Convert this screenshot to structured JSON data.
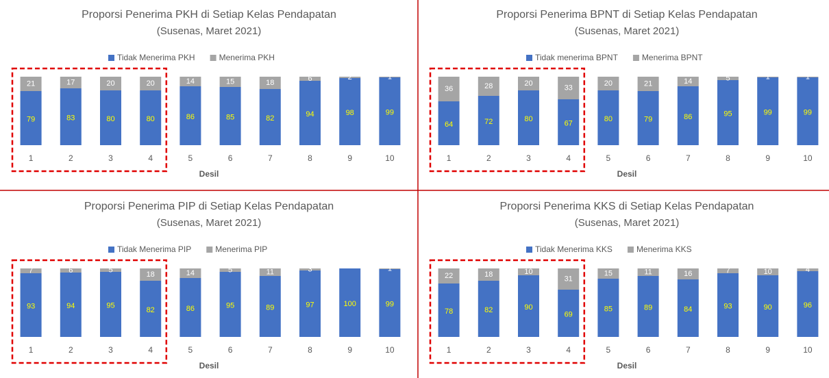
{
  "chart_data": [
    {
      "type": "stacked_bar",
      "title": "Proporsi Penerima PKH di Setiap Kelas Pendapatan",
      "subtitle": "(Susenas, Maret 2021)",
      "x_label": "Desil",
      "categories": [
        "1",
        "2",
        "3",
        "4",
        "5",
        "6",
        "7",
        "8",
        "9",
        "10"
      ],
      "series": [
        {
          "name": "Tidak Menerima PKH",
          "color": "#4472c4",
          "values": [
            79,
            83,
            80,
            80,
            86,
            85,
            82,
            94,
            98,
            99
          ]
        },
        {
          "name": "Menerima PKH",
          "color": "#a5a5a5",
          "values": [
            21,
            17,
            20,
            20,
            14,
            15,
            18,
            6,
            2,
            1
          ]
        }
      ]
    },
    {
      "type": "stacked_bar",
      "title": "Proporsi Penerima BPNT di Setiap Kelas Pendapatan",
      "subtitle": "(Susenas, Maret 2021)",
      "x_label": "Desil",
      "categories": [
        "1",
        "2",
        "3",
        "4",
        "5",
        "6",
        "7",
        "8",
        "9",
        "10"
      ],
      "series": [
        {
          "name": "Tidak menerima BPNT",
          "color": "#4472c4",
          "values": [
            64,
            72,
            80,
            67,
            80,
            79,
            86,
            95,
            99,
            99
          ]
        },
        {
          "name": "Menerima BPNT",
          "color": "#a5a5a5",
          "values": [
            36,
            28,
            20,
            33,
            20,
            21,
            14,
            5,
            1,
            1
          ]
        }
      ]
    },
    {
      "type": "stacked_bar",
      "title": "Proporsi Penerima PIP di Setiap Kelas Pendapatan",
      "subtitle": "(Susenas, Maret 2021)",
      "x_label": "Desil",
      "categories": [
        "1",
        "2",
        "3",
        "4",
        "5",
        "6",
        "7",
        "8",
        "9",
        "10"
      ],
      "series": [
        {
          "name": "Tidak Menerima PIP",
          "color": "#4472c4",
          "values": [
            93,
            94,
            95,
            82,
            86,
            95,
            89,
            97,
            100,
            99
          ]
        },
        {
          "name": "Menerima PIP",
          "color": "#a5a5a5",
          "values": [
            7,
            6,
            5,
            18,
            14,
            5,
            11,
            3,
            0,
            1
          ]
        }
      ]
    },
    {
      "type": "stacked_bar",
      "title": "Proporsi Penerima KKS di Setiap Kelas Pendapatan",
      "subtitle": "(Susenas, Maret 2021)",
      "x_label": "Desil",
      "categories": [
        "1",
        "2",
        "3",
        "4",
        "5",
        "6",
        "7",
        "8",
        "9",
        "10"
      ],
      "series": [
        {
          "name": "Tidak Menerima KKS",
          "color": "#4472c4",
          "values": [
            78,
            82,
            90,
            69,
            85,
            89,
            84,
            93,
            90,
            96
          ]
        },
        {
          "name": "Menerima KKS",
          "color": "#a5a5a5",
          "values": [
            22,
            18,
            10,
            31,
            15,
            11,
            16,
            7,
            10,
            4
          ]
        }
      ]
    }
  ]
}
